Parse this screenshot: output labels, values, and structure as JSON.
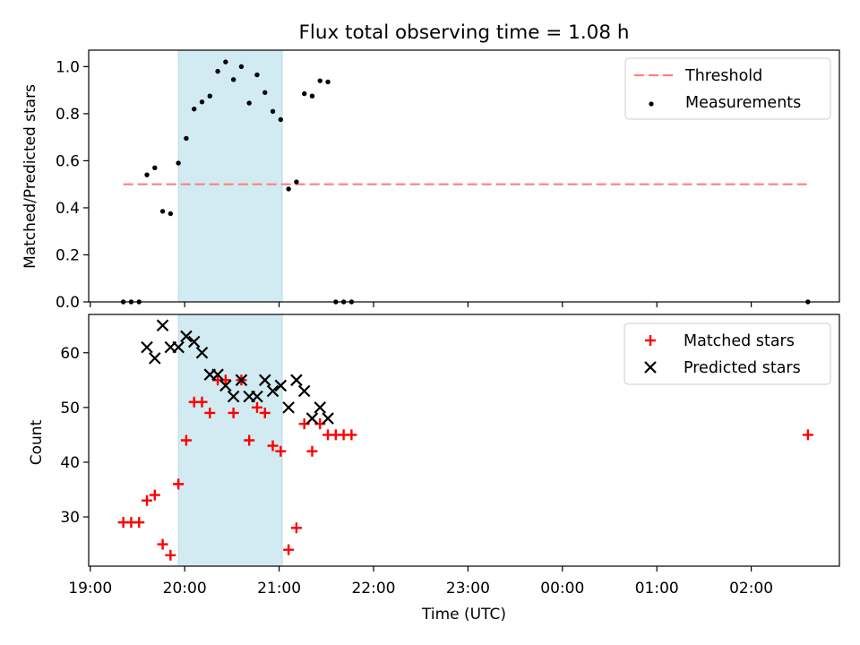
{
  "title": "Flux total observing time = 1.08 h",
  "colors": {
    "shade": "#add8e6",
    "threshold": "#ff7f7f",
    "measurement": "#000000",
    "matched": "#ff0000",
    "predicted": "#000000"
  },
  "chart_data": [
    {
      "type": "scatter",
      "ylabel": "Matched/Predicted stars",
      "ylim": [
        0,
        1.07
      ],
      "yticks": [
        "0.0",
        "0.2",
        "0.4",
        "0.6",
        "0.8",
        "1.0"
      ],
      "shaded_span": [
        "19:56",
        "21:02"
      ],
      "legend": {
        "placement": "top-right",
        "threshold_label": "Threshold",
        "measurements_label": "Measurements"
      },
      "threshold": {
        "x": [
          "19:21",
          "02:36"
        ],
        "y": 0.5
      },
      "series": [
        {
          "name": "Measurements",
          "points": [
            [
              "19:21",
              0.0
            ],
            [
              "19:26",
              0.0
            ],
            [
              "19:31",
              0.0
            ],
            [
              "19:36",
              0.54
            ],
            [
              "19:41",
              0.57
            ],
            [
              "19:46",
              0.385
            ],
            [
              "19:51",
              0.375
            ],
            [
              "19:56",
              0.59
            ],
            [
              "20:01",
              0.695
            ],
            [
              "20:06",
              0.82
            ],
            [
              "20:11",
              0.85
            ],
            [
              "20:16",
              0.875
            ],
            [
              "20:21",
              0.98
            ],
            [
              "20:26",
              1.02
            ],
            [
              "20:31",
              0.945
            ],
            [
              "20:36",
              1.0
            ],
            [
              "20:41",
              0.845
            ],
            [
              "20:46",
              0.965
            ],
            [
              "20:51",
              0.89
            ],
            [
              "20:56",
              0.81
            ],
            [
              "21:01",
              0.775
            ],
            [
              "21:06",
              0.48
            ],
            [
              "21:11",
              0.51
            ],
            [
              "21:16",
              0.885
            ],
            [
              "21:21",
              0.875
            ],
            [
              "21:26",
              0.94
            ],
            [
              "21:31",
              0.935
            ],
            [
              "21:36",
              0.0
            ],
            [
              "21:41",
              0.0
            ],
            [
              "21:46",
              0.0
            ],
            [
              "02:36",
              0.0
            ]
          ]
        }
      ]
    },
    {
      "type": "scatter",
      "xlabel": "Time (UTC)",
      "ylabel": "Count",
      "ylim": [
        21,
        67
      ],
      "yticks": [
        "30",
        "40",
        "50",
        "60"
      ],
      "xlim": [
        "18:59",
        "02:56"
      ],
      "xticks": [
        "19:00",
        "20:00",
        "21:00",
        "22:00",
        "23:00",
        "00:00",
        "01:00",
        "02:00"
      ],
      "shaded_span": [
        "19:56",
        "21:02"
      ],
      "legend": {
        "placement": "top-right",
        "matched_label": "Matched stars",
        "predicted_label": "Predicted stars"
      },
      "series": [
        {
          "name": "Matched stars",
          "points": [
            [
              "19:21",
              29
            ],
            [
              "19:26",
              29
            ],
            [
              "19:31",
              29
            ],
            [
              "19:36",
              33
            ],
            [
              "19:41",
              34
            ],
            [
              "19:46",
              25
            ],
            [
              "19:51",
              23
            ],
            [
              "19:56",
              36
            ],
            [
              "20:01",
              44
            ],
            [
              "20:06",
              51
            ],
            [
              "20:11",
              51
            ],
            [
              "20:16",
              49
            ],
            [
              "20:21",
              55
            ],
            [
              "20:26",
              55
            ],
            [
              "20:31",
              49
            ],
            [
              "20:36",
              55
            ],
            [
              "20:41",
              44
            ],
            [
              "20:46",
              50
            ],
            [
              "20:51",
              49
            ],
            [
              "20:56",
              43
            ],
            [
              "21:01",
              42
            ],
            [
              "21:06",
              24
            ],
            [
              "21:11",
              28
            ],
            [
              "21:16",
              47
            ],
            [
              "21:21",
              42
            ],
            [
              "21:26",
              47
            ],
            [
              "21:31",
              45
            ],
            [
              "21:36",
              45
            ],
            [
              "21:41",
              45
            ],
            [
              "21:46",
              45
            ],
            [
              "02:36",
              45
            ]
          ]
        },
        {
          "name": "Predicted stars",
          "points": [
            [
              "19:36",
              61
            ],
            [
              "19:41",
              59
            ],
            [
              "19:46",
              65
            ],
            [
              "19:51",
              61
            ],
            [
              "19:56",
              61
            ],
            [
              "20:01",
              63
            ],
            [
              "20:06",
              62
            ],
            [
              "20:11",
              60
            ],
            [
              "20:16",
              56
            ],
            [
              "20:21",
              56
            ],
            [
              "20:26",
              54
            ],
            [
              "20:31",
              52
            ],
            [
              "20:36",
              55
            ],
            [
              "20:41",
              52
            ],
            [
              "20:46",
              52
            ],
            [
              "20:51",
              55
            ],
            [
              "20:56",
              53
            ],
            [
              "21:01",
              54
            ],
            [
              "21:06",
              50
            ],
            [
              "21:11",
              55
            ],
            [
              "21:16",
              53
            ],
            [
              "21:21",
              48
            ],
            [
              "21:26",
              50
            ],
            [
              "21:31",
              48
            ]
          ]
        }
      ]
    }
  ]
}
